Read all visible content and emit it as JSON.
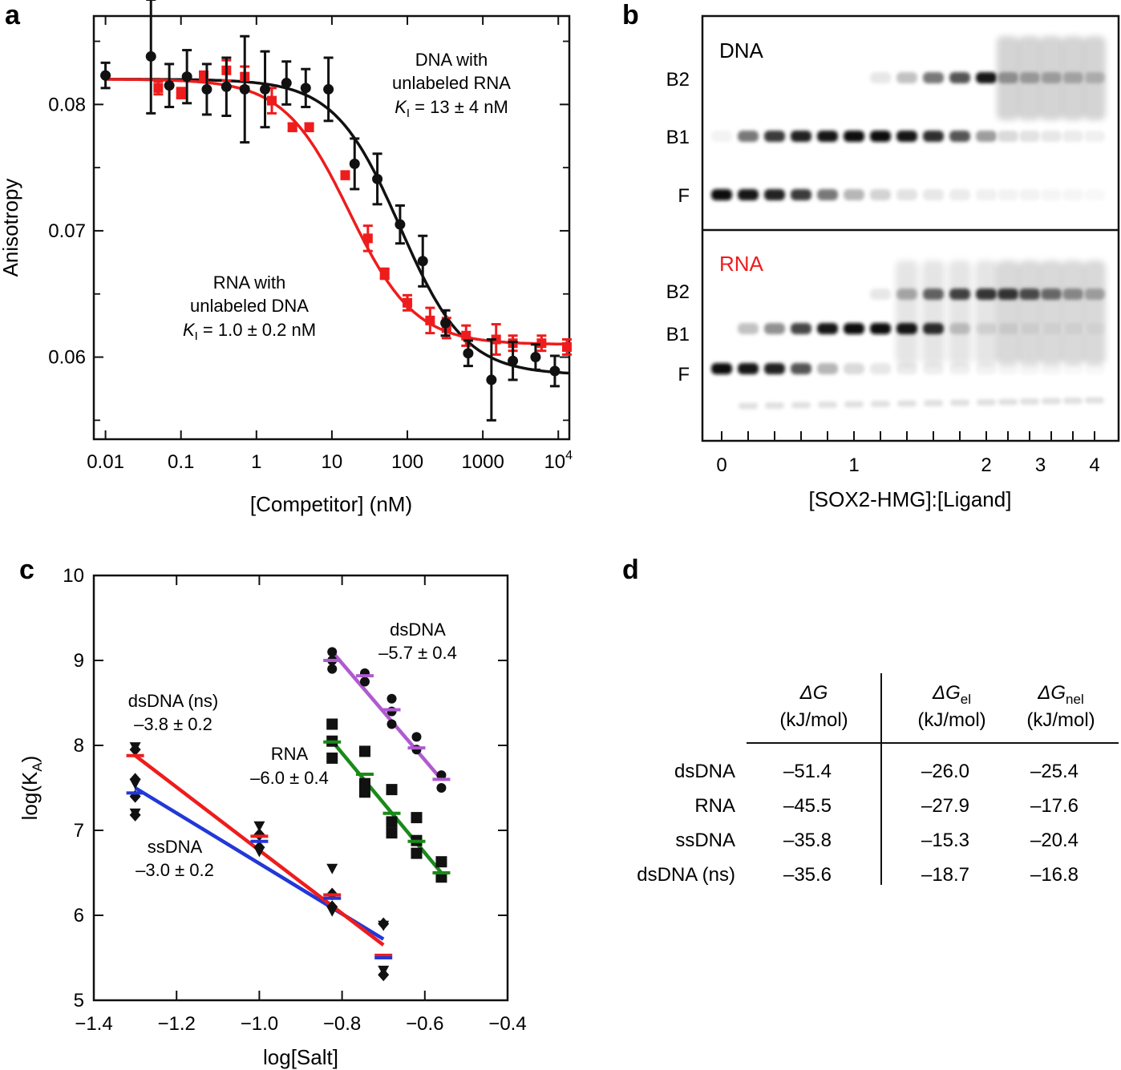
{
  "panel_labels": {
    "a": "a",
    "b": "b",
    "c": "c",
    "d": "d"
  },
  "chart_data": [
    {
      "type": "scatter",
      "panel": "a",
      "xscale": "log",
      "xlabel": "[Competitor] (nM)",
      "ylabel": "Anisotropy",
      "xlim": [
        0.007,
        14000
      ],
      "ylim": [
        0.0535,
        0.087
      ],
      "yticks": [
        0.06,
        0.07,
        0.08
      ],
      "ytick_labels": [
        "0.06",
        "0.07",
        "0.08"
      ],
      "xtick_labels": [
        "0.01",
        "0.1",
        "1",
        "10",
        "100",
        "1000",
        "10"
      ],
      "xtick_last_exponent": "4",
      "annotations": {
        "black_line1": "DNA with",
        "black_line2": "unlabeled RNA",
        "black_k": "K",
        "black_k_sub": "I",
        "black_k_value": " = 13 ± 4 nM",
        "red_line1": "RNA with",
        "red_line2": "unlabeled DNA",
        "red_k": "K",
        "red_k_sub": "I",
        "red_k_value": " = 1.0 ± 0.2 nM"
      },
      "series": [
        {
          "name": "DNA with unlabeled RNA",
          "color": "#111111",
          "marker": "circle",
          "x": [
            0.01,
            0.04,
            0.07,
            0.12,
            0.22,
            0.4,
            0.7,
            1.3,
            2.5,
            4.5,
            9
          ],
          "y": [
            0.0823,
            0.0838,
            0.0815,
            0.0822,
            0.0812,
            0.0814,
            0.0812,
            0.0812,
            0.0817,
            0.0813,
            0.0812
          ],
          "yerr": [
            0.001,
            0.0045,
            0.0017,
            0.0021,
            0.002,
            0.0023,
            0.0042,
            0.003,
            0.0017,
            0.0015,
            0.0025
          ],
          "x2": [
            20,
            40,
            80,
            160,
            320,
            640,
            1300,
            2500,
            5000,
            9000
          ],
          "y2": [
            0.0753,
            0.0741,
            0.0705,
            0.0676,
            0.0627,
            0.0603,
            0.0582,
            0.0597,
            0.06,
            0.0589
          ],
          "yerr2": [
            0.002,
            0.002,
            0.0015,
            0.002,
            0.001,
            0.001,
            0.0032,
            0.0015,
            0.001,
            0.0012
          ],
          "fit": {
            "top": 0.082,
            "bottom": 0.0586,
            "midpoint_nM": 80,
            "hill": 1
          }
        },
        {
          "name": "RNA with unlabeled DNA",
          "color": "#ee1c1c",
          "marker": "square",
          "x": [
            0.05,
            0.1,
            0.2,
            0.4,
            0.7,
            1.6,
            3,
            5,
            15,
            30,
            50,
            100,
            200,
            330,
            600,
            1500,
            2500,
            6000,
            13000
          ],
          "y": [
            0.0813,
            0.0809,
            0.0822,
            0.0827,
            0.0822,
            0.0803,
            0.0782,
            0.0782,
            0.0744,
            0.0694,
            0.0666,
            0.0643,
            0.0629,
            0.0623,
            0.0617,
            0.0614,
            0.0611,
            0.0611,
            0.0608
          ],
          "yerr": [
            0.0005,
            0.0004,
            0.0004,
            0.0008,
            0.0008,
            0.001,
            0.0003,
            0.0003,
            0.0003,
            0.001,
            0.0004,
            0.0006,
            0.001,
            0.0008,
            0.0008,
            0.0012,
            0.0006,
            0.0006,
            0.0006
          ],
          "fit": {
            "top": 0.082,
            "bottom": 0.061,
            "midpoint_nM": 17,
            "hill": 1
          }
        }
      ]
    },
    {
      "type": "gel",
      "panel": "b",
      "xlabel": "[SOX2-HMG]:[Ligand]",
      "xtick_labels": [
        "0",
        "1",
        "2",
        "3",
        "4"
      ],
      "xtick_values": [
        0,
        1,
        2,
        3,
        4
      ],
      "lane_ratios": [
        0,
        0.2,
        0.4,
        0.6,
        0.8,
        1.0,
        1.2,
        1.4,
        1.6,
        1.8,
        2.0,
        2.4,
        2.8,
        3.2,
        3.6,
        4.0
      ],
      "gels": [
        {
          "title": "DNA",
          "title_color": "#111111",
          "band_labels": [
            "B2",
            "B1",
            "F"
          ],
          "F_intensity": [
            1.0,
            0.95,
            0.9,
            0.8,
            0.55,
            0.3,
            0.18,
            0.12,
            0.1,
            0.08,
            0.06,
            0.05,
            0.05,
            0.04,
            0.04,
            0.03
          ],
          "B1_intensity": [
            0.05,
            0.55,
            0.8,
            0.9,
            0.95,
            1.0,
            1.0,
            0.95,
            0.85,
            0.7,
            0.4,
            0.15,
            0.12,
            0.1,
            0.08,
            0.06
          ],
          "B2_intensity": [
            0.0,
            0.0,
            0.0,
            0.0,
            0.0,
            0.0,
            0.1,
            0.25,
            0.55,
            0.7,
            0.95,
            0.35,
            0.3,
            0.28,
            0.25,
            0.2
          ]
        },
        {
          "title": "RNA",
          "title_color": "#ee1c1c",
          "band_labels": [
            "B2",
            "B1",
            "F"
          ],
          "F_intensity": [
            1.0,
            0.95,
            0.9,
            0.7,
            0.3,
            0.15,
            0.1,
            0.08,
            0.07,
            0.06,
            0.05,
            0.04,
            0.04,
            0.04,
            0.03,
            0.03
          ],
          "B1_intensity": [
            0.0,
            0.25,
            0.45,
            0.75,
            0.95,
            1.0,
            1.0,
            0.95,
            0.85,
            0.2,
            0.1,
            0.08,
            0.06,
            0.05,
            0.05,
            0.04
          ],
          "B2_intensity": [
            0.0,
            0.0,
            0.0,
            0.0,
            0.0,
            0.0,
            0.1,
            0.3,
            0.6,
            0.75,
            0.8,
            0.8,
            0.7,
            0.55,
            0.4,
            0.3
          ]
        }
      ]
    },
    {
      "type": "scatter",
      "panel": "c",
      "xlabel": "log[Salt]",
      "ylabel": "log(K",
      "ylabel_sub": "A",
      "ylabel_end": ")",
      "xlim": [
        -1.4,
        -0.4
      ],
      "ylim": [
        5,
        10
      ],
      "xticks": [
        -1.4,
        -1.2,
        -1.0,
        -0.8,
        -0.6,
        -0.4
      ],
      "xtick_labels": [
        "−1.4",
        "−1.2",
        "−1.0",
        "−0.8",
        "−0.6",
        "−0.4"
      ],
      "yticks": [
        5,
        6,
        7,
        8,
        9,
        10
      ],
      "ytick_labels": [
        "5",
        "6",
        "7",
        "8",
        "9",
        "10"
      ],
      "series": [
        {
          "name": "dsDNA",
          "label_line1": "dsDNA",
          "label_line2": "–5.7 ± 0.4",
          "color": "#b05ad0",
          "marker": "circle",
          "x": [
            -0.824,
            -0.824,
            -0.824,
            -0.745,
            -0.745,
            -0.68,
            -0.68,
            -0.68,
            -0.62,
            -0.62,
            -0.56,
            -0.56
          ],
          "y": [
            9.1,
            9.0,
            8.9,
            8.85,
            8.75,
            8.55,
            8.4,
            8.25,
            8.1,
            7.95,
            7.65,
            7.5
          ],
          "means_x": [
            -0.824,
            -0.745,
            -0.68,
            -0.62,
            -0.56
          ],
          "means_y": [
            9.0,
            8.82,
            8.42,
            7.97,
            7.6
          ],
          "fit": {
            "x": [
              -0.82,
              -0.56
            ],
            "y": [
              9.08,
              7.6
            ]
          }
        },
        {
          "name": "RNA",
          "label_line1": "RNA",
          "label_line2": "–6.0 ± 0.4",
          "color": "#1a8a1a",
          "marker": "square",
          "x": [
            -0.824,
            -0.824,
            -0.824,
            -0.745,
            -0.745,
            -0.745,
            -0.68,
            -0.68,
            -0.68,
            -0.62,
            -0.62,
            -0.62,
            -0.56,
            -0.56
          ],
          "y": [
            8.25,
            8.05,
            7.85,
            7.93,
            7.55,
            7.45,
            7.48,
            7.1,
            6.97,
            7.15,
            6.88,
            6.73,
            6.63,
            6.45
          ],
          "means_x": [
            -0.824,
            -0.745,
            -0.68,
            -0.62,
            -0.56
          ],
          "means_y": [
            8.04,
            7.66,
            7.2,
            6.87,
            6.5
          ],
          "fit": {
            "x": [
              -0.824,
              -0.56
            ],
            "y": [
              8.05,
              6.5
            ]
          }
        },
        {
          "name": "dsDNA (ns)",
          "label_line1": "dsDNA (ns)",
          "label_line2": "–3.8 ± 0.2",
          "color": "#ee1c1c",
          "marker": "diamond",
          "x": [
            -1.3,
            -1.3,
            -1.3,
            -1.3,
            -1.0,
            -1.0,
            -0.824,
            -0.824,
            -0.7,
            -0.7
          ],
          "y": [
            7.95,
            7.6,
            7.4,
            7.18,
            6.95,
            6.8,
            6.25,
            6.1,
            5.9,
            5.3
          ],
          "means_x": [
            -1.3,
            -1.0,
            -0.824,
            -0.7
          ],
          "means_y": [
            7.88,
            6.93,
            6.24,
            5.53
          ],
          "fit": {
            "x": [
              -1.3,
              -0.7
            ],
            "y": [
              7.88,
              5.65
            ]
          }
        },
        {
          "name": "ssDNA",
          "label_line1": "ssDNA",
          "label_line2": "–3.0 ± 0.2",
          "color": "#2238d6",
          "marker": "triangle-down",
          "x": [
            -1.3,
            -1.3,
            -1.3,
            -1.0,
            -1.0,
            -0.824,
            -0.824,
            -0.7,
            -0.7
          ],
          "y": [
            7.98,
            7.55,
            7.2,
            7.05,
            6.75,
            6.55,
            6.05,
            5.88,
            5.35
          ],
          "means_x": [
            -1.3,
            -1.0,
            -0.824,
            -0.7
          ],
          "means_y": [
            7.44,
            6.87,
            6.2,
            5.5
          ],
          "fit": {
            "x": [
              -1.3,
              -0.7
            ],
            "y": [
              7.5,
              5.72
            ]
          }
        }
      ]
    },
    {
      "type": "table",
      "panel": "d",
      "columns": [
        {
          "sym": "ΔG",
          "sub": "",
          "unit": "(kJ/mol)"
        },
        {
          "sym": "ΔG",
          "sub": "el",
          "unit": "(kJ/mol)"
        },
        {
          "sym": "ΔG",
          "sub": "nel",
          "unit": "(kJ/mol)"
        }
      ],
      "rows": [
        {
          "label": "dsDNA",
          "values": [
            "–51.4",
            "–26.0",
            "–25.4"
          ]
        },
        {
          "label": "RNA",
          "values": [
            "–45.5",
            "–27.9",
            "–17.6"
          ]
        },
        {
          "label": "ssDNA",
          "values": [
            "–35.8",
            "–15.3",
            "–20.4"
          ]
        },
        {
          "label": "dsDNA (ns)",
          "values": [
            "–35.6",
            "–18.7",
            "–16.8"
          ]
        }
      ]
    }
  ]
}
